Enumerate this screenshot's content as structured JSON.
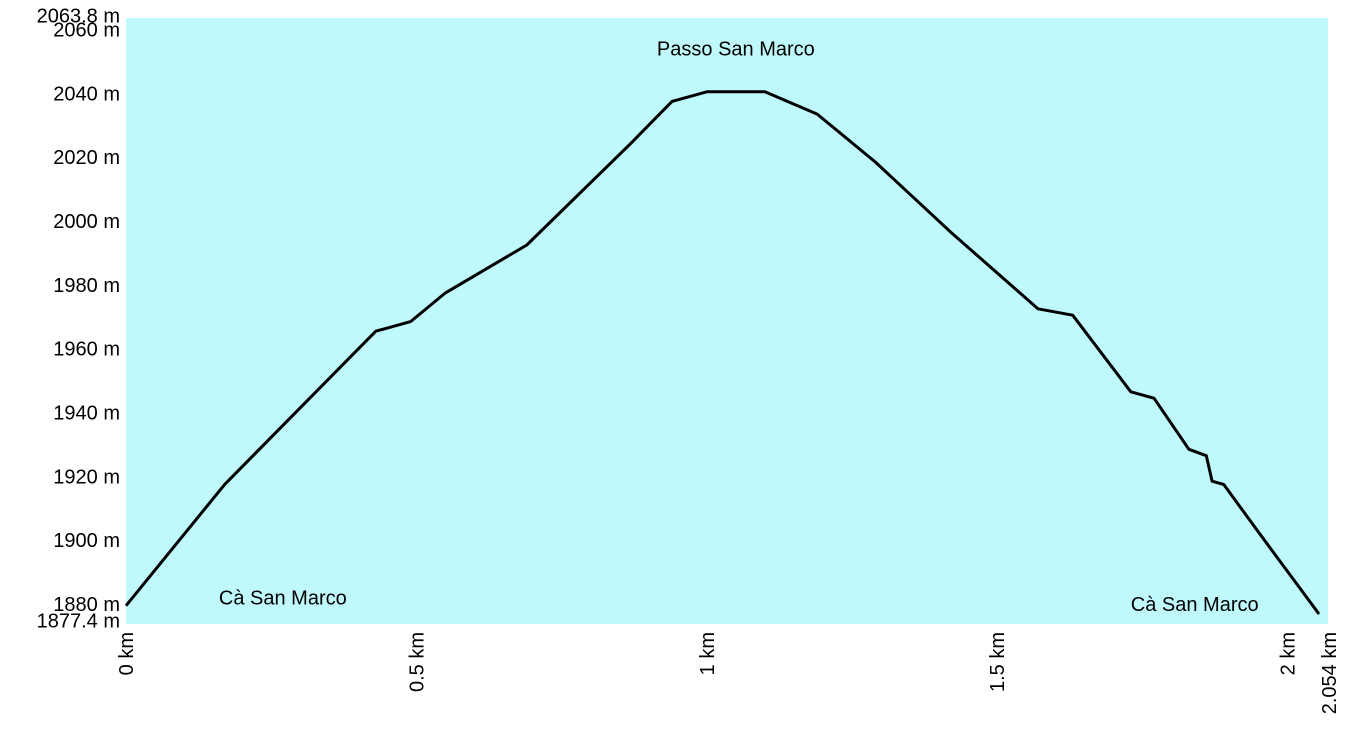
{
  "colors": {
    "plot_background": "#bff9fc",
    "line": "#000000",
    "text": "#000000",
    "page_background": "#ffffff"
  },
  "chart_data": {
    "type": "line",
    "xlim": [
      0,
      2.054
    ],
    "ylim": [
      1877.4,
      2063.8
    ],
    "grid": false,
    "legend": "none",
    "x_ticks": [
      {
        "value": 0,
        "label": "0 km"
      },
      {
        "value": 0.5,
        "label": "0.5 km"
      },
      {
        "value": 1,
        "label": "1 km"
      },
      {
        "value": 1.5,
        "label": "1.5 km"
      },
      {
        "value": 2,
        "label": "2 km"
      },
      {
        "value": 2.054,
        "label": "2.054 km"
      }
    ],
    "y_ticks": [
      {
        "value": 1877.4,
        "label": "1877.4 m"
      },
      {
        "value": 1880,
        "label": "1880 m"
      },
      {
        "value": 1900,
        "label": "1900 m"
      },
      {
        "value": 1920,
        "label": "1920 m"
      },
      {
        "value": 1940,
        "label": "1940 m"
      },
      {
        "value": 1960,
        "label": "1960 m"
      },
      {
        "value": 1980,
        "label": "1980 m"
      },
      {
        "value": 2000,
        "label": "2000 m"
      },
      {
        "value": 2020,
        "label": "2020 m"
      },
      {
        "value": 2040,
        "label": "2040 m"
      },
      {
        "value": 2060,
        "label": "2060 m"
      },
      {
        "value": 2063.8,
        "label": "2063.8 m"
      }
    ],
    "series": [
      {
        "x": [
          0,
          0.17,
          0.43,
          0.49,
          0.55,
          0.69,
          0.87,
          0.94,
          1.0,
          1.1,
          1.19,
          1.29,
          1.42,
          1.57,
          1.63,
          1.73,
          1.77,
          1.83,
          1.86,
          1.87,
          1.89,
          1.95,
          2.054
        ],
        "y": [
          1880,
          1918,
          1966,
          1969,
          1978,
          1993,
          2025,
          2038,
          2041,
          2041,
          2034,
          2019,
          1997,
          1973,
          1971,
          1947,
          1945,
          1929,
          1927,
          1919,
          1918,
          1903,
          1877.4
        ]
      }
    ],
    "annotations": [
      {
        "text": "Passo San Marco",
        "x": 1.05,
        "y": 2054
      },
      {
        "text": "Cà San Marco",
        "x": 0.27,
        "y": 1882
      },
      {
        "text": "Cà San Marco",
        "x": 1.84,
        "y": 1880
      }
    ]
  }
}
